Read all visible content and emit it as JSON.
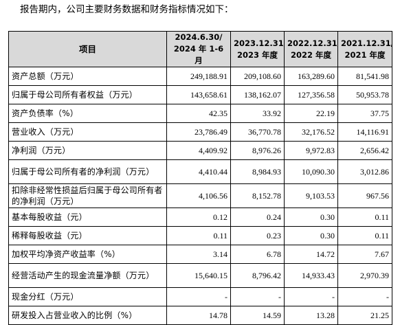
{
  "intro": "报告期内，公司主要财务数据和财务指标情况如下：",
  "header": {
    "item": "项目",
    "periods": [
      {
        "line1": "2024.6.30/",
        "line2": "2024 年 1-6 月"
      },
      {
        "line1": "2023.12.31/",
        "line2": "2023 年度"
      },
      {
        "line1": "2022.12.31/",
        "line2": "2022 年度"
      },
      {
        "line1": "2021.12.31/",
        "line2": "2021 年度"
      }
    ]
  },
  "rows": [
    {
      "label": "资产总额（万元）",
      "values": [
        "249,188.91",
        "209,108.60",
        "163,289.60",
        "81,541.98"
      ]
    },
    {
      "label": "归属于母公司所有者权益（万元）",
      "values": [
        "143,658.61",
        "138,162.07",
        "127,356.58",
        "50,953.78"
      ]
    },
    {
      "label": "资产负债率（%）",
      "values": [
        "42.35",
        "33.92",
        "22.19",
        "37.75"
      ]
    },
    {
      "label": "营业收入（万元）",
      "values": [
        "23,786.49",
        "36,770.78",
        "32,176.52",
        "14,116.91"
      ]
    },
    {
      "label": "净利润（万元）",
      "values": [
        "4,409.92",
        "8,976.26",
        "9,972.83",
        "2,656.42"
      ]
    },
    {
      "label": "归属于母公司所有者的净利润（万元）",
      "values": [
        "4,410.44",
        "8,984.93",
        "10,090.30",
        "3,012.86"
      ],
      "tall": true
    },
    {
      "label": "扣除非经常性损益后归属于母公司所有者的净利润（万元）",
      "values": [
        "4,106.56",
        "8,152.78",
        "9,103.53",
        "967.56"
      ],
      "tall": true
    },
    {
      "label": "基本每股收益（元）",
      "values": [
        "0.12",
        "0.24",
        "0.30",
        "0.11"
      ]
    },
    {
      "label": "稀释每股收益（元）",
      "values": [
        "0.11",
        "0.23",
        "0.30",
        "0.11"
      ]
    },
    {
      "label": "加权平均净资产收益率（%）",
      "values": [
        "3.14",
        "6.78",
        "14.72",
        "7.67"
      ]
    },
    {
      "label": "经营活动产生的现金流量净额（万元）",
      "values": [
        "15,640.15",
        "8,796.42",
        "14,933.43",
        "2,970.39"
      ],
      "tall": true
    },
    {
      "label": "现金分红（万元）",
      "values": [
        "-",
        "-",
        "-",
        "-"
      ]
    },
    {
      "label": "研发投入占营业收入的比例（%）",
      "values": [
        "14.78",
        "14.59",
        "13.28",
        "21.25"
      ]
    }
  ]
}
